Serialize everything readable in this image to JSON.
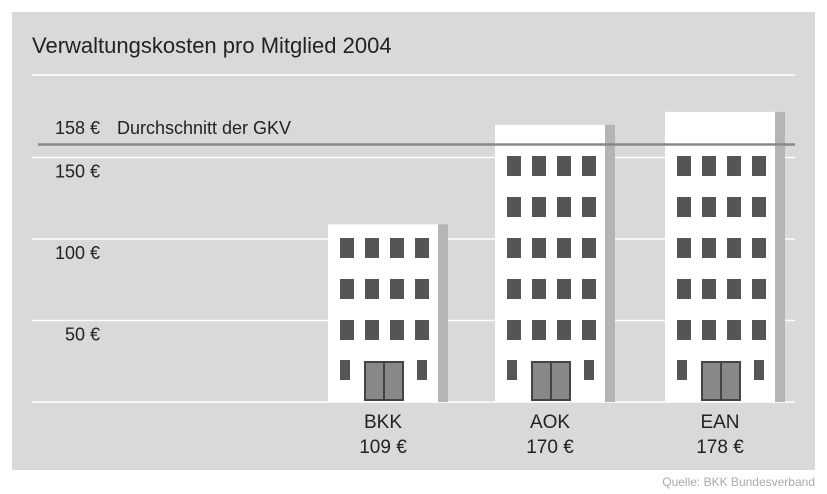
{
  "chart_data": {
    "type": "bar",
    "title": "Verwaltungskosten pro Mitglied 2004",
    "categories": [
      "BKK",
      "AOK",
      "EAN"
    ],
    "values": [
      109,
      170,
      178
    ],
    "value_labels": [
      "109 €",
      "170 €",
      "178 €"
    ],
    "color": "#ffffff",
    "ylim": [
      0,
      190
    ],
    "yticks": [
      {
        "value": 50,
        "label": "50 €"
      },
      {
        "value": 100,
        "label": "100 €"
      },
      {
        "value": 150,
        "label": "150 €"
      }
    ],
    "grid": true,
    "average": {
      "value": 158,
      "label": "158 €",
      "text": "Durchschnitt der GKV"
    },
    "source": "Quelle: BKK Bundesverband"
  }
}
